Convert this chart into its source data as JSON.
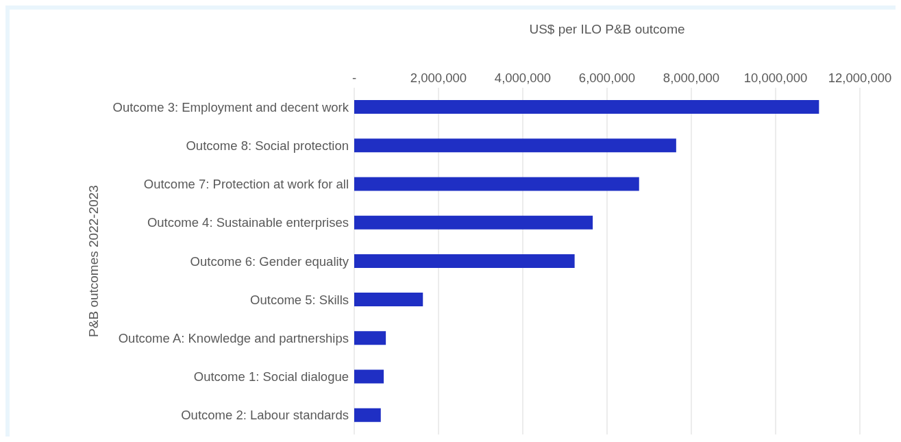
{
  "chart_data": {
    "type": "bar",
    "orientation": "horizontal",
    "xlabel": "US$ per ILO P&B outcome",
    "ylabel": "P&B outcomes 2022-2023",
    "categories": [
      "Outcome 3: Employment and decent work",
      "Outcome 8: Social protection",
      "Outcome 7: Protection at work for all",
      "Outcome 4: Sustainable enterprises",
      "Outcome 6: Gender equality",
      "Outcome 5: Skills",
      "Outcome A: Knowledge and partnerships",
      "Outcome 1: Social dialogue",
      "Outcome 2: Labour standards"
    ],
    "values": [
      11030000,
      7640000,
      6760000,
      5660000,
      5230000,
      1630000,
      750000,
      700000,
      630000
    ],
    "color": "#1f2fc4",
    "xlim": [
      0,
      12000000
    ],
    "xticks": [
      {
        "value": 0,
        "label": "-"
      },
      {
        "value": 2000000,
        "label": "2,000,000"
      },
      {
        "value": 4000000,
        "label": "4,000,000"
      },
      {
        "value": 6000000,
        "label": "6,000,000"
      },
      {
        "value": 8000000,
        "label": "8,000,000"
      },
      {
        "value": 10000000,
        "label": "10,000,000"
      },
      {
        "value": 12000000,
        "label": "12,000,000"
      }
    ],
    "grid": "x",
    "legend": false
  }
}
